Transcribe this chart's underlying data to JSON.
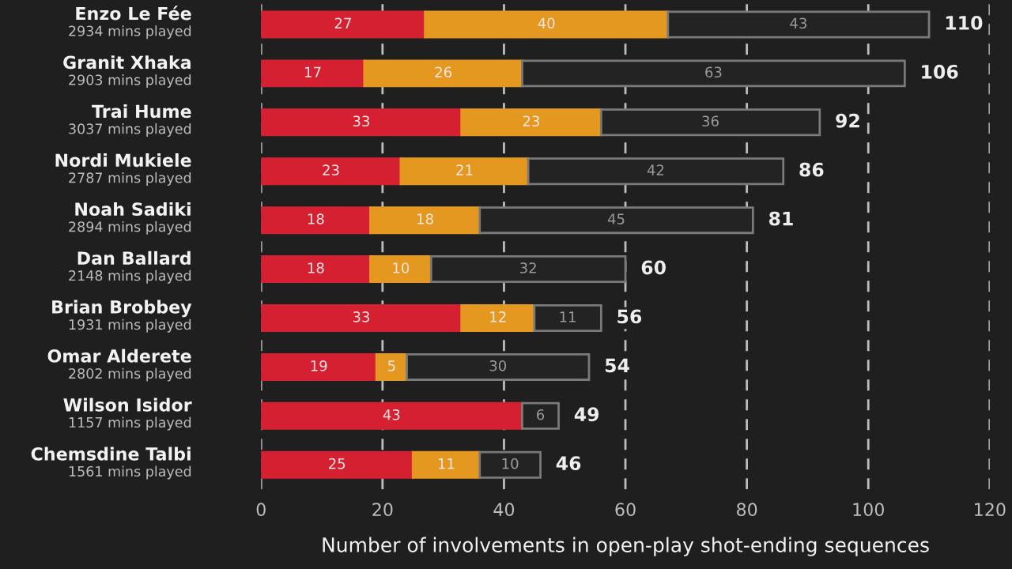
{
  "chart_data": {
    "type": "bar",
    "orientation": "horizontal",
    "stacked": true,
    "xlabel": "Number of involvements in open-play shot-ending sequences",
    "categories": [
      "Enzo Le Fée\n2934 mins played",
      "Granit Xhaka\n2903 mins played",
      "Trai Hume\n3037 mins played",
      "Nordi Mukiele\n2787 mins played",
      "Noah Sadiki\n2894 mins played",
      "Dan Ballard\n2148 mins played",
      "Brian Brobbey\n1931 mins played",
      "Omar Alderete\n2802 mins played",
      "Wilson Isidor\n1157 mins played",
      "Chemsdine Talbi\n1561 mins played"
    ],
    "series": [
      {
        "color": "#d42030",
        "values": [
          27,
          17,
          33,
          23,
          18,
          18,
          33,
          19,
          43,
          25
        ],
        "value_labels": [
          "27",
          "17",
          "33",
          "23",
          "18",
          "18",
          "33",
          "19",
          "43",
          "25"
        ]
      },
      {
        "color": "#e4981f",
        "values": [
          40,
          26,
          23,
          21,
          18,
          10,
          12,
          5,
          0,
          11
        ],
        "value_labels": [
          "40",
          "26",
          "23",
          "21",
          "18",
          "10",
          "12",
          "5",
          null,
          "11"
        ]
      },
      {
        "color": "#232323",
        "values": [
          43,
          63,
          36,
          42,
          45,
          32,
          11,
          30,
          6,
          10
        ],
        "value_labels": [
          "43",
          "63",
          "36",
          "42",
          "45",
          "32",
          "11",
          "30",
          "6",
          "10"
        ]
      }
    ],
    "totals": [
      "110",
      "106",
      "92",
      "86",
      "81",
      "60",
      "56",
      "54",
      "49",
      "46"
    ],
    "xlim": [
      0,
      120
    ],
    "xticks": [
      0,
      20,
      40,
      60,
      80,
      100,
      120
    ],
    "grid": "x",
    "legend": false
  }
}
